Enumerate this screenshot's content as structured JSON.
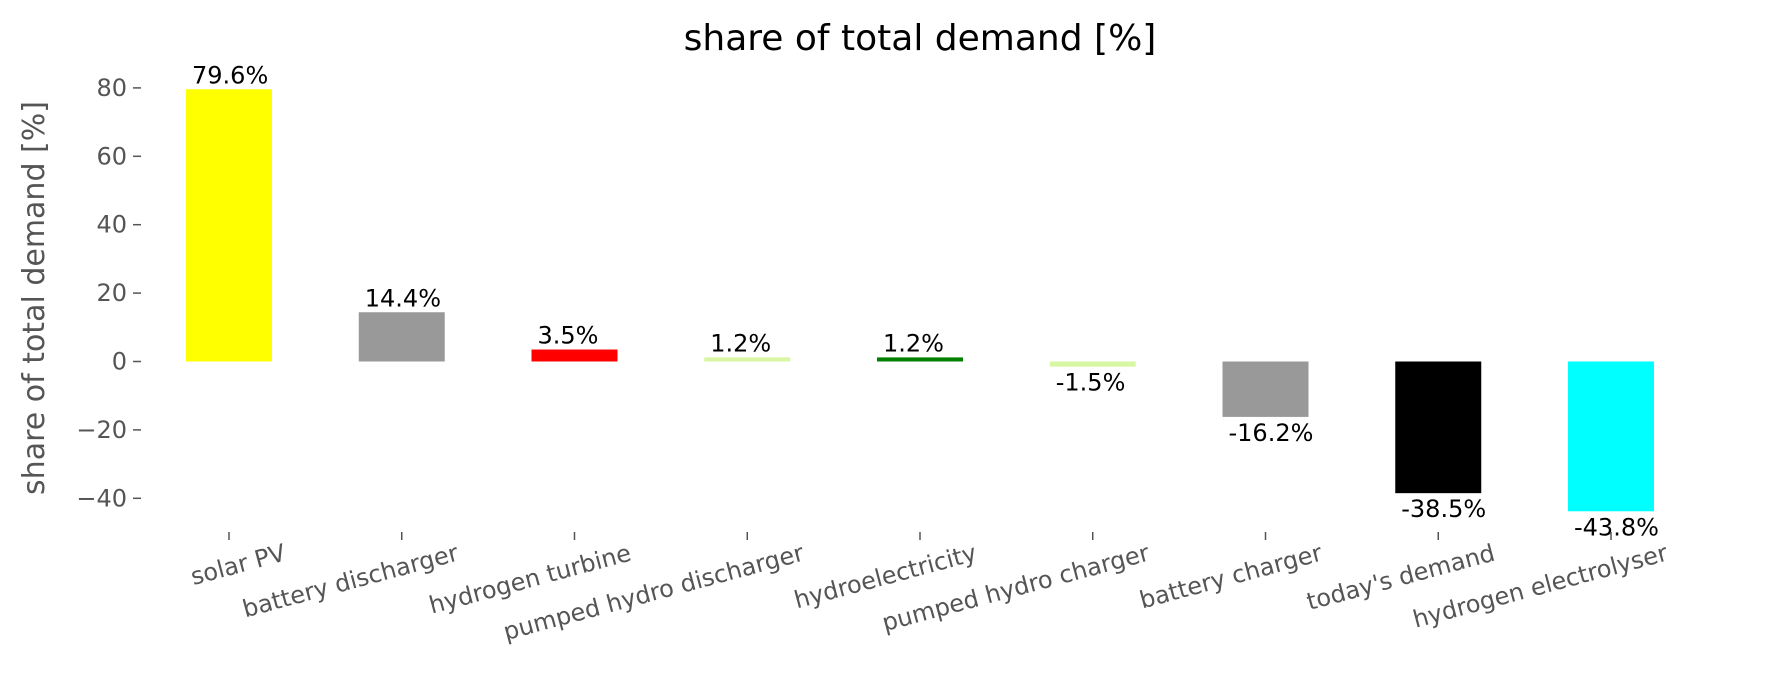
{
  "chart_data": {
    "type": "bar",
    "title": "share of total demand [%]",
    "xlabel": "",
    "ylabel": "share of total demand [%]",
    "ylim": [
      -50,
      80
    ],
    "yticks": [
      80,
      60,
      40,
      20,
      0,
      -20,
      -40
    ],
    "ytick_labels": [
      "80",
      "60",
      "40",
      "20",
      "0",
      "−20",
      "−40"
    ],
    "grid": false,
    "categories": [
      "solar PV",
      "battery discharger",
      "hydrogen turbine",
      "pumped hydro discharger",
      "hydroelectricity",
      "pumped hydro charger",
      "battery charger",
      "today's demand",
      "hydrogen electrolyser"
    ],
    "values": [
      79.6,
      14.4,
      3.5,
      1.2,
      1.2,
      -1.5,
      -16.2,
      -38.5,
      -43.8
    ],
    "labels": [
      "79.6%",
      "14.4%",
      "3.5%",
      "1.2%",
      "1.2%",
      "-1.5%",
      "-16.2%",
      "-38.5%",
      "-43.8%"
    ],
    "colors": [
      "#ffff00",
      "#999999",
      "#ff0000",
      "#d7f7a2",
      "#008000",
      "#d7f7a2",
      "#999999",
      "#000000",
      "#00ffff"
    ]
  }
}
